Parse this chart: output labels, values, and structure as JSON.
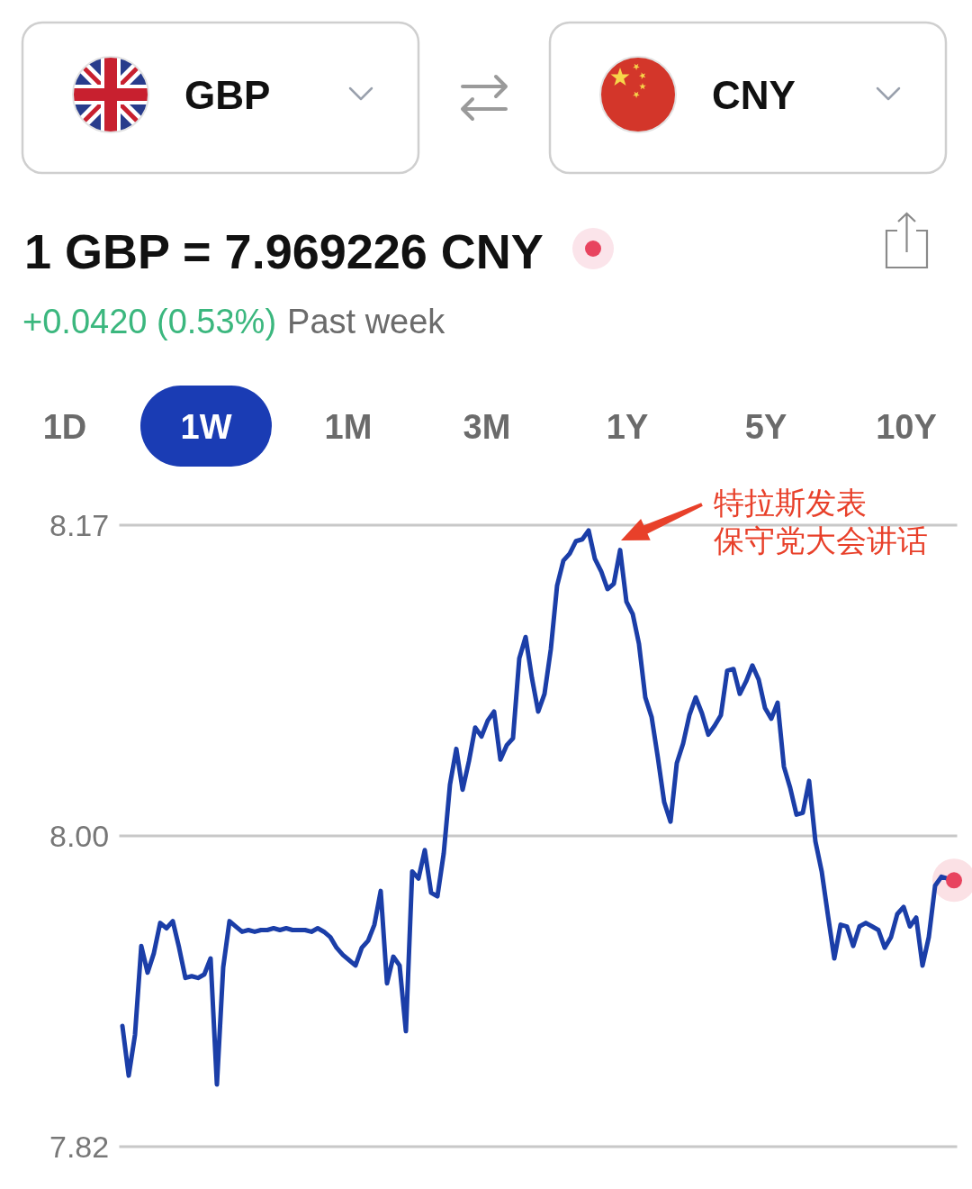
{
  "chart_data": {
    "type": "line",
    "title": "1 GBP = 7.969226 CNY",
    "subtitle": "+0.0420 (0.53%)",
    "annotations": [
      "GBP",
      "CNY",
      "Past week",
      "1D",
      "1W",
      "1M",
      "3M",
      "1Y",
      "5Y",
      "10Y",
      "特拉斯发表保守党大会讲话"
    ],
    "categories": [
      null,
      null,
      null,
      null,
      null,
      null,
      null,
      null,
      null,
      null,
      null,
      null,
      null,
      null,
      null,
      null,
      null,
      null,
      null,
      null,
      null,
      null,
      null,
      null,
      null,
      null,
      null,
      null,
      null,
      null,
      null,
      null,
      null,
      null,
      null,
      null,
      null,
      null,
      null,
      null,
      null,
      null,
      null,
      null,
      null,
      null,
      null,
      null,
      null,
      null,
      null,
      null,
      null,
      null,
      null,
      null,
      null,
      null,
      null,
      null,
      null,
      null,
      null,
      null,
      null,
      null,
      null,
      null,
      null,
      null,
      null,
      null,
      null,
      null,
      null,
      null,
      null,
      null,
      null,
      null,
      null,
      null,
      null,
      null,
      null,
      null,
      null,
      null,
      null,
      null,
      null,
      null,
      null,
      null,
      null,
      null,
      null,
      null,
      null,
      null,
      null,
      null,
      null,
      null,
      null,
      null,
      null,
      null,
      null,
      null,
      null,
      null,
      null,
      null,
      null,
      null,
      null,
      null,
      null,
      null,
      null,
      null,
      null,
      null,
      null,
      null,
      null,
      null,
      null,
      null,
      null,
      null,
      null
    ],
    "series": [
      {
        "color": "#1b3ea8",
        "values": [
          7.893,
          7.865,
          7.888,
          7.938,
          7.923,
          7.934,
          7.951,
          7.948,
          7.952,
          7.937,
          7.92,
          7.921,
          7.92,
          7.922,
          7.931,
          7.86,
          7.926,
          7.952,
          7.949,
          7.946,
          7.947,
          7.946,
          7.947,
          7.947,
          7.948,
          7.947,
          7.948,
          7.947,
          7.947,
          7.947,
          7.946,
          7.948,
          7.946,
          7.943,
          7.937,
          7.933,
          7.93,
          7.927,
          7.937,
          7.941,
          7.95,
          7.969,
          7.917,
          7.932,
          7.927,
          7.89,
          7.98,
          7.976,
          7.992,
          7.968,
          7.966,
          7.99,
          8.029,
          8.049,
          8.026,
          8.042,
          8.061,
          8.056,
          8.065,
          8.07,
          8.043,
          8.051,
          8.055,
          8.1,
          8.112,
          8.089,
          8.07,
          8.08,
          8.105,
          8.141,
          8.155,
          8.159,
          8.166,
          8.167,
          8.172,
          8.156,
          8.149,
          8.139,
          8.142,
          8.161,
          8.132,
          8.125,
          8.108,
          8.078,
          8.067,
          8.044,
          8.019,
          8.008,
          8.041,
          8.052,
          8.068,
          8.078,
          8.069,
          8.057,
          8.062,
          8.068,
          8.093,
          8.094,
          8.08,
          8.087,
          8.096,
          8.088,
          8.072,
          8.066,
          8.075,
          8.039,
          8.027,
          8.012,
          8.013,
          8.031,
          7.997,
          7.98,
          7.955,
          7.931,
          7.95,
          7.949,
          7.938,
          7.949,
          7.951,
          7.949,
          7.947,
          7.937,
          7.943,
          7.956,
          7.96,
          7.949,
          7.954,
          7.927,
          7.943,
          7.972,
          7.977,
          7.976,
          null
        ]
      },
      {
        "type": "scatter",
        "color": "#e8445f",
        "values": [
          null,
          null,
          null,
          null,
          null,
          null,
          null,
          null,
          null,
          null,
          null,
          null,
          null,
          null,
          null,
          null,
          null,
          null,
          null,
          null,
          null,
          null,
          null,
          null,
          null,
          null,
          null,
          null,
          null,
          null,
          null,
          null,
          null,
          null,
          null,
          null,
          null,
          null,
          null,
          null,
          null,
          null,
          null,
          null,
          null,
          null,
          null,
          null,
          null,
          null,
          null,
          null,
          null,
          null,
          null,
          null,
          null,
          null,
          null,
          null,
          null,
          null,
          null,
          null,
          null,
          null,
          null,
          null,
          null,
          null,
          null,
          null,
          null,
          null,
          null,
          null,
          null,
          null,
          null,
          null,
          null,
          null,
          null,
          null,
          null,
          null,
          null,
          null,
          null,
          null,
          null,
          null,
          null,
          null,
          null,
          null,
          null,
          null,
          null,
          null,
          null,
          null,
          null,
          null,
          null,
          null,
          null,
          null,
          null,
          null,
          null,
          null,
          null,
          null,
          null,
          null,
          null,
          null,
          null,
          null,
          null,
          null,
          null,
          null,
          null,
          null,
          null,
          null,
          null,
          null,
          null,
          null,
          7.975
        ]
      }
    ],
    "ylim": [
      7.825,
      8.175
    ],
    "yticks": [
      {
        "value": 8.175,
        "label": "8.17"
      },
      {
        "value": 8.0,
        "label": "8.00"
      },
      {
        "value": 7.825,
        "label": "7.82"
      }
    ],
    "grid": "y"
  }
}
